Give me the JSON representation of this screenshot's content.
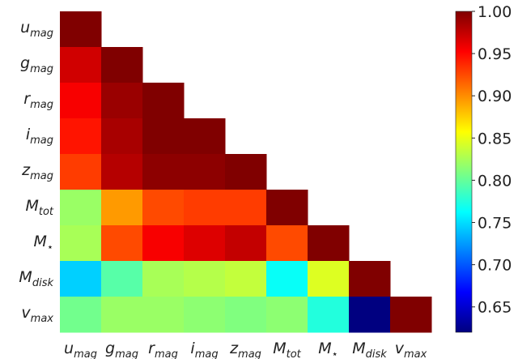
{
  "chart_data": {
    "type": "heatmap",
    "variables": [
      {
        "base": "u",
        "sub": "mag"
      },
      {
        "base": "g",
        "sub": "mag"
      },
      {
        "base": "r",
        "sub": "mag"
      },
      {
        "base": "i",
        "sub": "mag"
      },
      {
        "base": "z",
        "sub": "mag"
      },
      {
        "base": "M",
        "sub": "tot"
      },
      {
        "base": "M",
        "sub": "⋆"
      },
      {
        "base": "M",
        "sub": "disk"
      },
      {
        "base": "v",
        "sub": "max"
      }
    ],
    "matrix_lower_triangle": [
      [
        1.0
      ],
      [
        0.97,
        1.0
      ],
      [
        0.955,
        0.99,
        1.0
      ],
      [
        0.945,
        0.985,
        1.0,
        1.0
      ],
      [
        0.93,
        0.98,
        0.995,
        0.995,
        1.0
      ],
      [
        0.82,
        0.895,
        0.925,
        0.93,
        0.93,
        1.0
      ],
      [
        0.825,
        0.925,
        0.955,
        0.965,
        0.975,
        0.925,
        1.0
      ],
      [
        0.745,
        0.795,
        0.825,
        0.83,
        0.835,
        0.765,
        0.845,
        1.0
      ],
      [
        0.805,
        0.82,
        0.82,
        0.815,
        0.81,
        0.815,
        0.775,
        0.62,
        1.0
      ]
    ],
    "colorbar": {
      "colormap": "jet",
      "vmin": 0.62,
      "vmax": 1.0,
      "ticks": [
        0.65,
        0.7,
        0.75,
        0.8,
        0.85,
        0.9,
        0.95,
        1.0
      ],
      "tick_labels": [
        "0.65",
        "0.70",
        "0.75",
        "0.80",
        "0.85",
        "0.90",
        "0.95",
        "1.00"
      ]
    }
  }
}
